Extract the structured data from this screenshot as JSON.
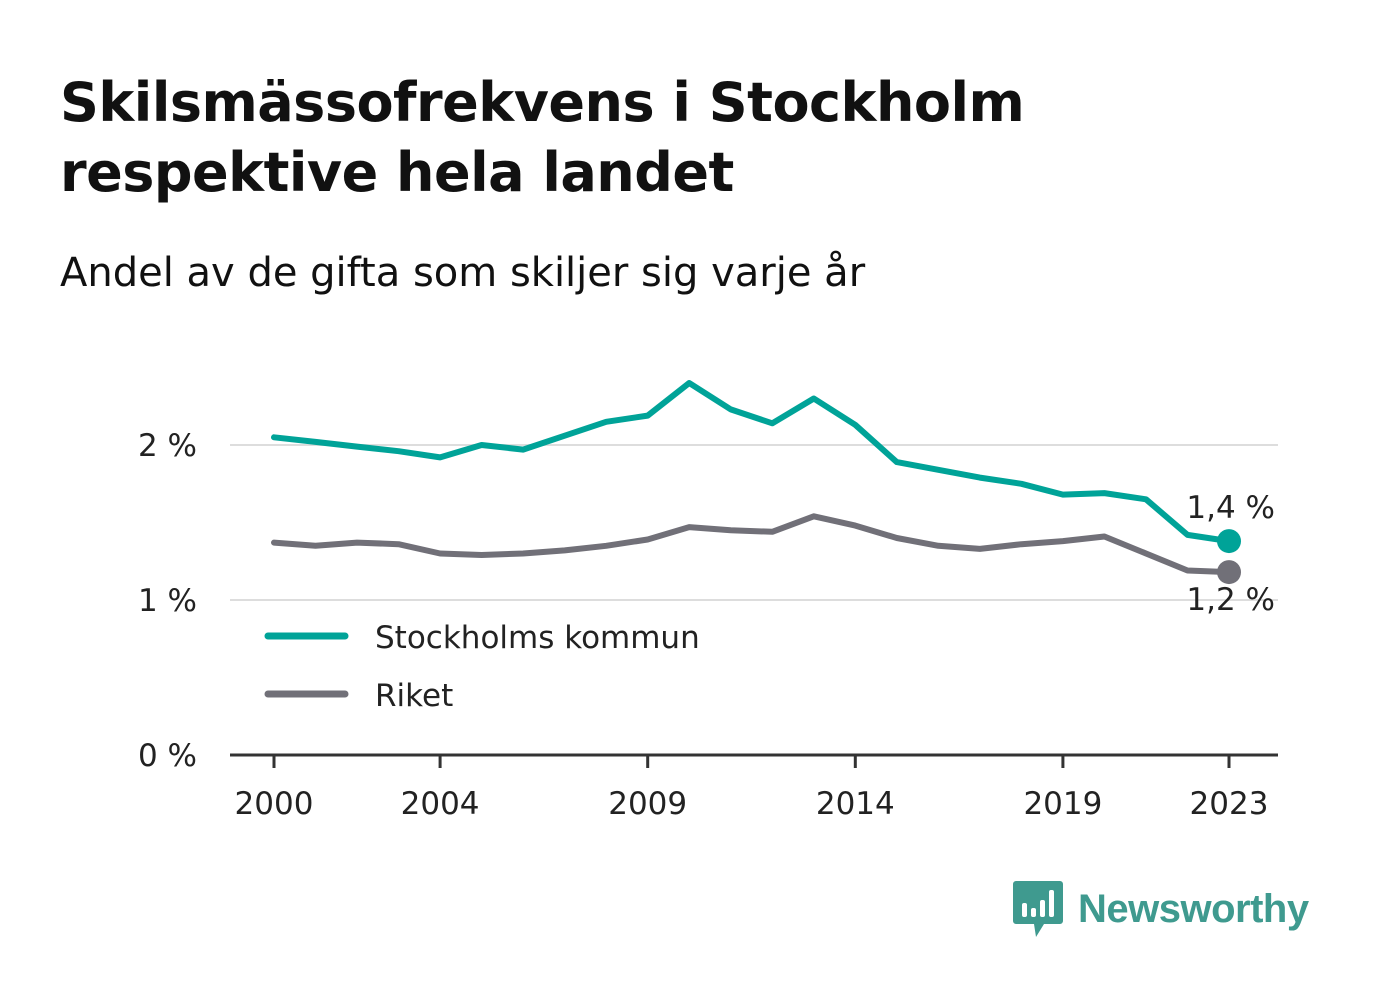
{
  "title": "Skilsmässofrekvens i Stockholm respektive hela landet",
  "subtitle": "Andel av de gifta som skiljer sig varje år",
  "brand": {
    "name": "Newsworthy",
    "icon": "bar-chart-bubble-icon",
    "color": "#3f9a8f"
  },
  "chart_data": {
    "type": "line",
    "x": [
      2000,
      2001,
      2002,
      2003,
      2004,
      2005,
      2006,
      2007,
      2008,
      2009,
      2010,
      2011,
      2012,
      2013,
      2014,
      2015,
      2016,
      2017,
      2018,
      2019,
      2020,
      2021,
      2022,
      2023
    ],
    "x_tick_labels": [
      "2000",
      "2004",
      "2009",
      "2014",
      "2019",
      "2023"
    ],
    "x_ticks": [
      2000,
      2004,
      2009,
      2014,
      2019,
      2023
    ],
    "ylim": [
      0,
      2.5
    ],
    "y_ticks": [
      0,
      1,
      2
    ],
    "y_tick_labels": [
      "0 %",
      "1 %",
      "2 %"
    ],
    "grid": true,
    "legend_position": "bottom-left",
    "series": [
      {
        "name": "Stockholms kommun",
        "color": "#00a398",
        "values": [
          2.05,
          2.02,
          1.99,
          1.96,
          1.92,
          2.0,
          1.97,
          2.06,
          2.15,
          2.19,
          2.4,
          2.23,
          2.14,
          2.3,
          2.13,
          1.89,
          1.84,
          1.79,
          1.75,
          1.68,
          1.69,
          1.65,
          1.42,
          1.38
        ],
        "end_label": "1,4 %"
      },
      {
        "name": "Riket",
        "color": "#717078",
        "values": [
          1.37,
          1.35,
          1.37,
          1.36,
          1.3,
          1.29,
          1.3,
          1.32,
          1.35,
          1.39,
          1.47,
          1.45,
          1.44,
          1.54,
          1.48,
          1.4,
          1.35,
          1.33,
          1.36,
          1.38,
          1.41,
          1.3,
          1.19,
          1.18
        ],
        "end_label": "1,2 %"
      }
    ]
  }
}
